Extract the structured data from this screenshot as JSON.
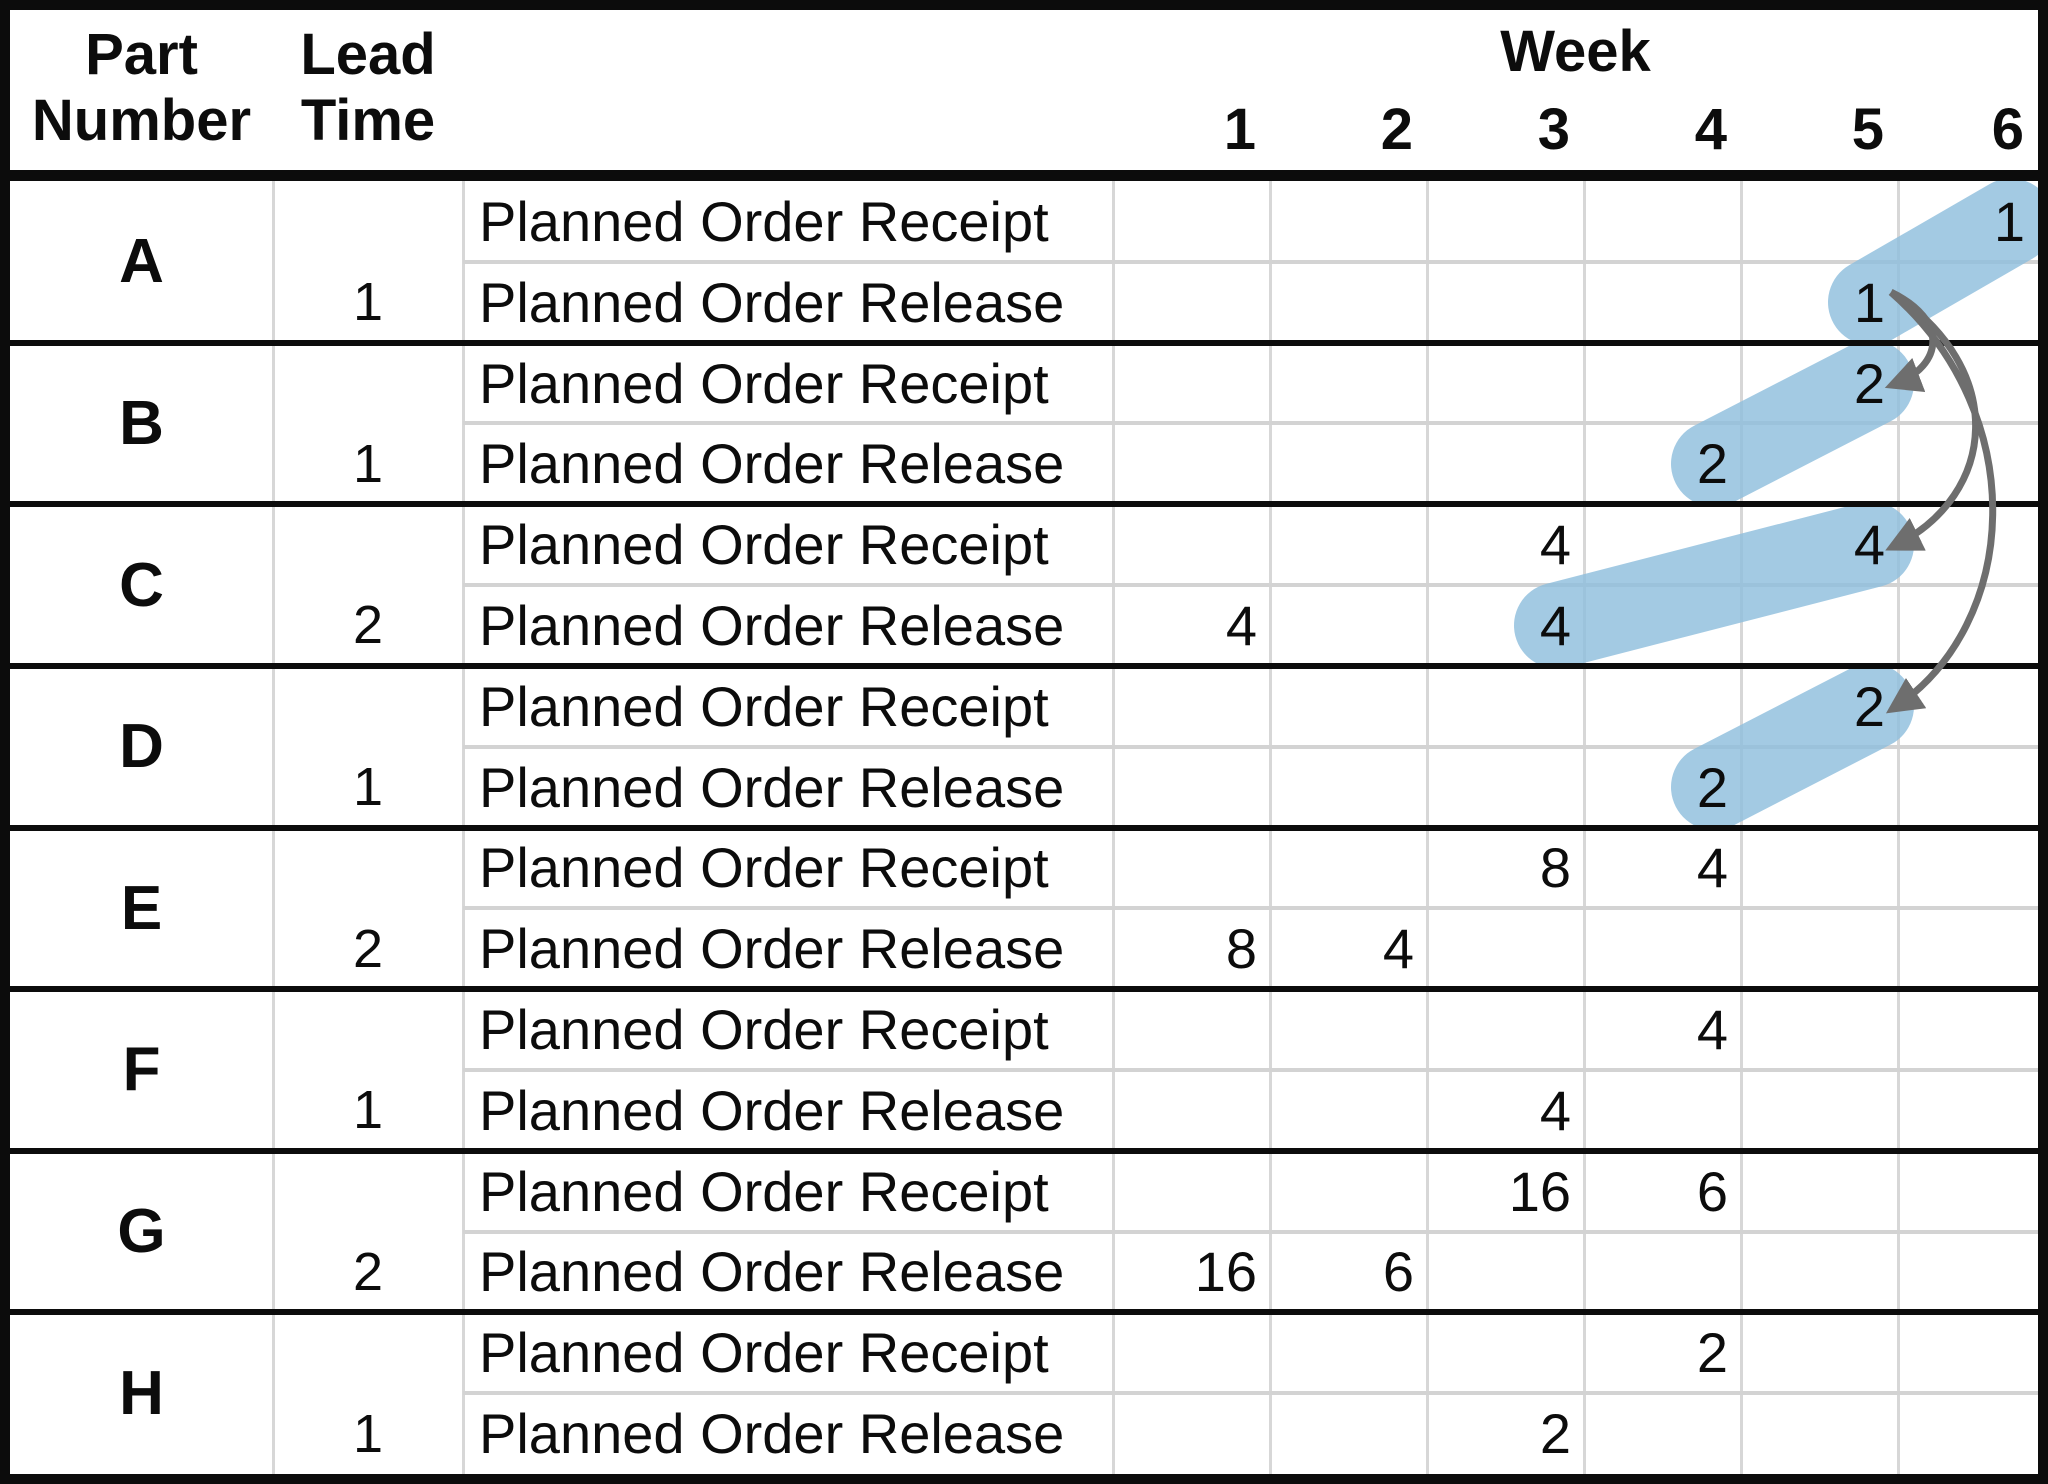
{
  "table": {
    "headers": {
      "part_line1": "Part",
      "part_line2": "Number",
      "lead_line1": "Lead",
      "lead_line2": "Time",
      "week": "Week",
      "week_numbers": [
        "1",
        "2",
        "3",
        "4",
        "5",
        "6"
      ]
    },
    "row_labels": {
      "receipt": "Planned Order Receipt",
      "release": "Planned Order Release"
    },
    "parts": [
      {
        "id": "A",
        "lead_time": "1",
        "receipt": [
          "",
          "",
          "",
          "",
          "",
          "1"
        ],
        "release": [
          "",
          "",
          "",
          "",
          "1",
          ""
        ]
      },
      {
        "id": "B",
        "lead_time": "1",
        "receipt": [
          "",
          "",
          "",
          "",
          "2",
          ""
        ],
        "release": [
          "",
          "",
          "",
          "2",
          "",
          ""
        ]
      },
      {
        "id": "C",
        "lead_time": "2",
        "receipt": [
          "",
          "",
          "4",
          "",
          "4",
          ""
        ],
        "release": [
          "4",
          "",
          "4",
          "",
          "",
          ""
        ]
      },
      {
        "id": "D",
        "lead_time": "1",
        "receipt": [
          "",
          "",
          "",
          "",
          "2",
          ""
        ],
        "release": [
          "",
          "",
          "",
          "2",
          "",
          ""
        ]
      },
      {
        "id": "E",
        "lead_time": "2",
        "receipt": [
          "",
          "",
          "8",
          "4",
          "",
          ""
        ],
        "release": [
          "8",
          "4",
          "",
          "",
          "",
          ""
        ]
      },
      {
        "id": "F",
        "lead_time": "1",
        "receipt": [
          "",
          "",
          "",
          "4",
          "",
          ""
        ],
        "release": [
          "",
          "",
          "4",
          "",
          "",
          ""
        ]
      },
      {
        "id": "G",
        "lead_time": "2",
        "receipt": [
          "",
          "",
          "16",
          "6",
          "",
          ""
        ],
        "release": [
          "16",
          "6",
          "",
          "",
          "",
          ""
        ]
      },
      {
        "id": "H",
        "lead_time": "1",
        "receipt": [
          "",
          "",
          "",
          "2",
          "",
          ""
        ],
        "release": [
          "",
          "",
          "2",
          "",
          "",
          ""
        ]
      }
    ]
  },
  "annotations": {
    "highlight_color": "#8FBEDD",
    "highlight_opacity": 0.82,
    "arrow_color": "#6E6E6E",
    "capsules": [
      {
        "part": "A",
        "from_row": "release",
        "from_week": 5,
        "to_row": "receipt",
        "to_week": 6
      },
      {
        "part": "B",
        "from_row": "release",
        "from_week": 4,
        "to_row": "receipt",
        "to_week": 5
      },
      {
        "part": "C",
        "from_row": "release",
        "from_week": 3,
        "to_row": "receipt",
        "to_week": 5
      },
      {
        "part": "D",
        "from_row": "release",
        "from_week": 4,
        "to_row": "receipt",
        "to_week": 5
      }
    ],
    "arrows": [
      {
        "from_part": "A",
        "from_row": "release",
        "from_week": 5,
        "to_part": "B",
        "to_row": "receipt",
        "to_week": 5,
        "bulge": 58
      },
      {
        "from_part": "A",
        "from_row": "release",
        "from_week": 5,
        "to_part": "C",
        "to_row": "receipt",
        "to_week": 5,
        "bulge": 118
      },
      {
        "from_part": "A",
        "from_row": "release",
        "from_week": 5,
        "to_part": "D",
        "to_row": "receipt",
        "to_week": 5,
        "bulge": 142
      }
    ]
  }
}
